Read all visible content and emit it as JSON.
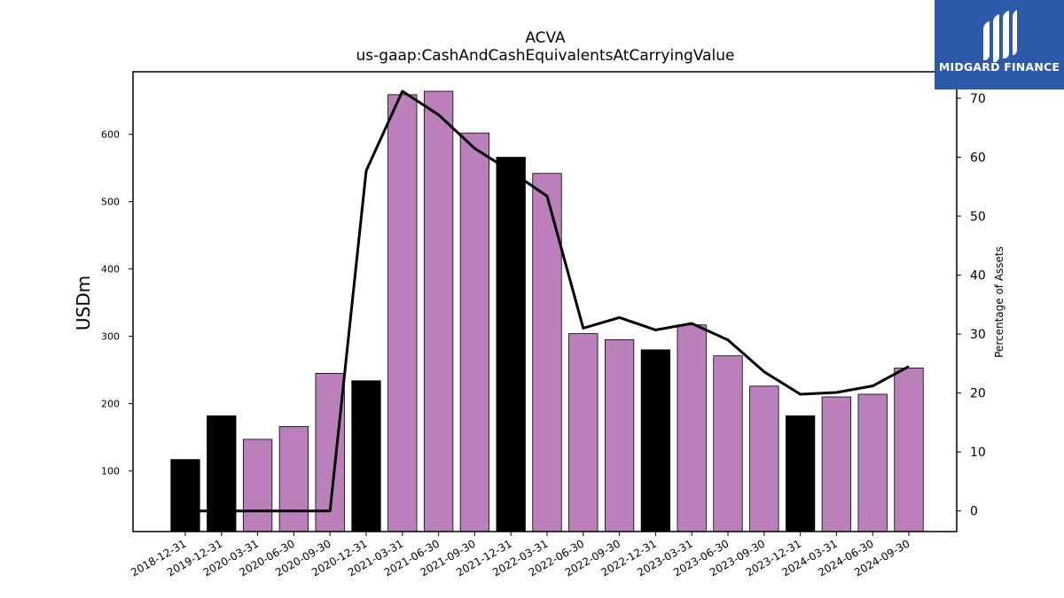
{
  "chart_data": {
    "type": "bar",
    "title": "ACVA",
    "subtitle": "us-gaap:CashAndCashEquivalentsAtCarryingValue",
    "ylabel": "USDm",
    "y2label": "Percentage of Assets",
    "categories": [
      "2018-12-31",
      "2019-12-31",
      "2020-03-31",
      "2020-06-30",
      "2020-09-30",
      "2020-12-31",
      "2021-03-31",
      "2021-06-30",
      "2021-09-30",
      "2021-12-31",
      "2022-03-31",
      "2022-06-30",
      "2022-09-30",
      "2022-12-31",
      "2023-03-31",
      "2023-06-30",
      "2023-09-30",
      "2023-12-31",
      "2024-03-31",
      "2024-06-30",
      "2024-09-30"
    ],
    "values": [
      117,
      182,
      147,
      166,
      245,
      234,
      659,
      664,
      602,
      566,
      542,
      304,
      295,
      280,
      317,
      271,
      226,
      182,
      210,
      214,
      253
    ],
    "bar_colors": [
      "#000000",
      "#000000",
      "#bb7fbb",
      "#bb7fbb",
      "#bb7fbb",
      "#000000",
      "#bb7fbb",
      "#bb7fbb",
      "#bb7fbb",
      "#000000",
      "#bb7fbb",
      "#bb7fbb",
      "#bb7fbb",
      "#000000",
      "#bb7fbb",
      "#bb7fbb",
      "#bb7fbb",
      "#000000",
      "#bb7fbb",
      "#bb7fbb",
      "#bb7fbb"
    ],
    "line_values": [
      0,
      0,
      0,
      0,
      0,
      57.7,
      71.2,
      67.2,
      61.5,
      57.6,
      53.4,
      31.0,
      32.8,
      30.7,
      31.8,
      29.0,
      23.6,
      19.8,
      20.1,
      21.2,
      24.5
    ],
    "line_color": "#000000",
    "ylim": [
      10,
      693
    ],
    "y2lim": [
      -3.5,
      74.5
    ],
    "yticks": [
      100,
      200,
      300,
      400,
      500,
      600
    ],
    "y2ticks": [
      0,
      10,
      20,
      30,
      40,
      50,
      60,
      70
    ],
    "grid": false
  },
  "logo": {
    "text": "MIDGARD FINANCE",
    "color": "#2c5aa8"
  }
}
